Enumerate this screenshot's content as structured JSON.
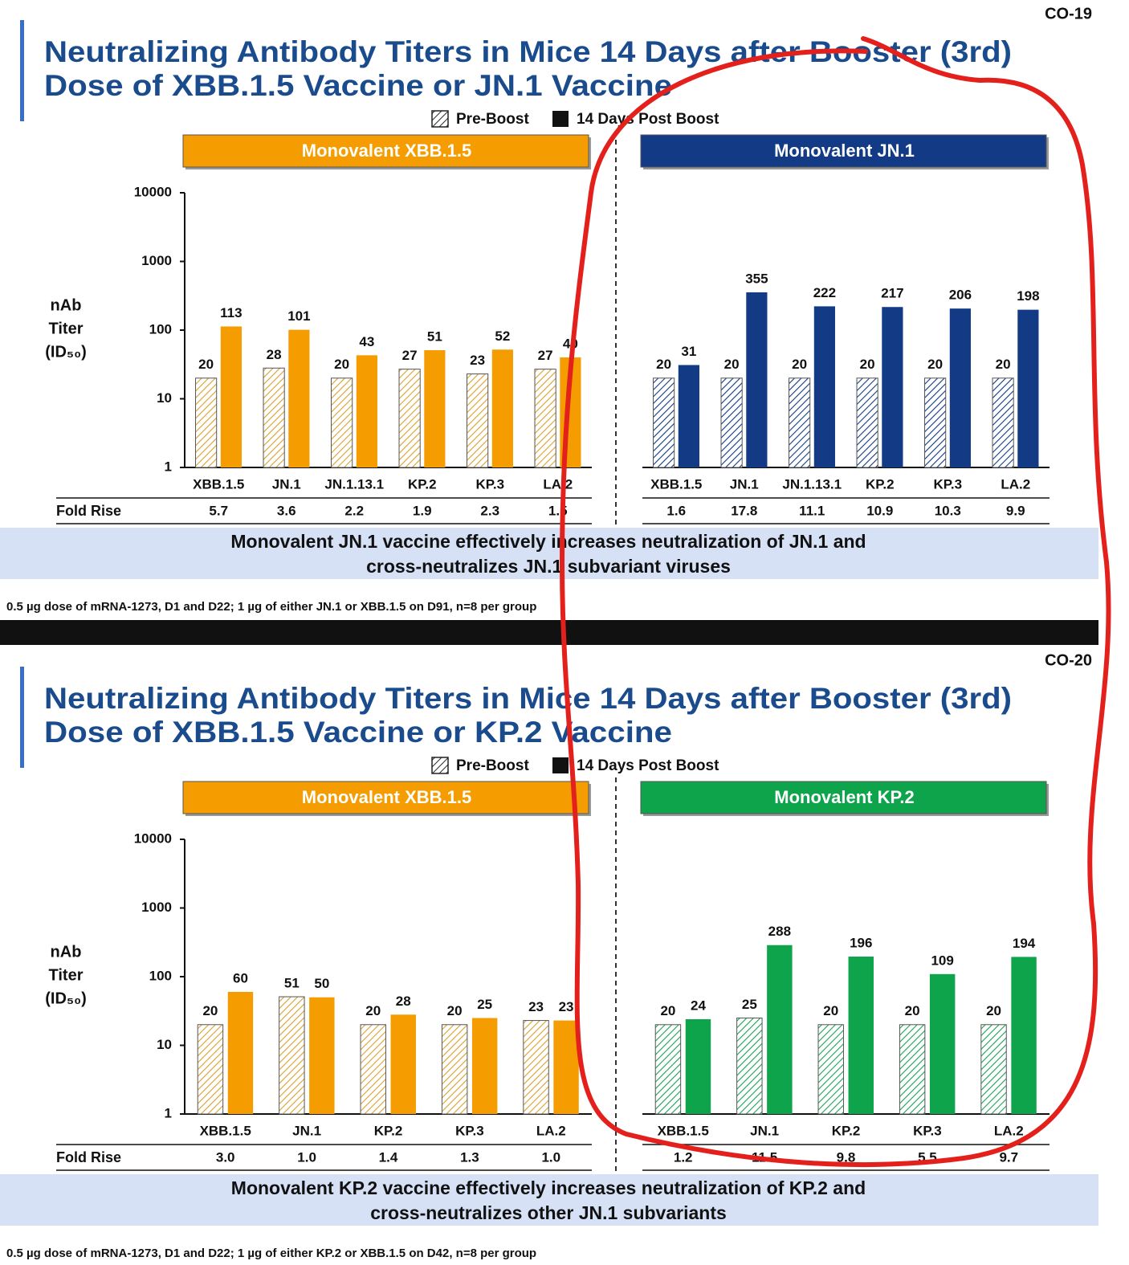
{
  "slides": [
    {
      "code": "CO-19",
      "title": [
        "Neutralizing Antibody Titers in Mice 14 Days after Booster (3rd)",
        "Dose of XBB.1.5 Vaccine or JN.1 Vaccine"
      ],
      "legend": [
        "Pre-Boost",
        "14 Days Post Boost"
      ],
      "conclusion": [
        "Monovalent JN.1 vaccine effectively increases neutralization of JN.1 and",
        "cross-neutralizes JN.1 subvariant viruses"
      ],
      "footnote": "0.5 µg dose of mRNA-1273, D1 and D22; 1 µg of either JN.1 or XBB.1.5 on D91, n=8 per group"
    },
    {
      "code": "CO-20",
      "title": [
        "Neutralizing Antibody Titers in Mice 14 Days after Booster (3rd)",
        "Dose of XBB.1.5 Vaccine or KP.2 Vaccine"
      ],
      "legend": [
        "Pre-Boost",
        "14 Days Post Boost"
      ],
      "conclusion": [
        "Monovalent KP.2 vaccine effectively increases neutralization of KP.2 and",
        "cross-neutralizes other JN.1 subvariants"
      ],
      "footnote": "0.5 µg dose of mRNA-1273, D1 and D22; 1 µg of either KP.2 or XBB.1.5 on D42, n=8 per group"
    }
  ],
  "chart_data": [
    {
      "type": "bar",
      "title": "Monovalent XBB.1.5",
      "header_color": "#f59c00",
      "log_scale": true,
      "ylabel": [
        "nAb",
        "Titer",
        "(ID₅₀)"
      ],
      "categories": [
        "XBB.1.5",
        "JN.1",
        "JN.1.13.1",
        "KP.2",
        "KP.3",
        "LA.2"
      ],
      "series": [
        {
          "color": "#d9a12e",
          "hatch": true,
          "values": [
            20,
            28,
            20,
            27,
            23,
            27
          ]
        },
        {
          "color": "#f59c00",
          "values": [
            113,
            101,
            43,
            51,
            52,
            40
          ]
        }
      ],
      "ylim": [
        1,
        10000
      ],
      "yticks": [
        1,
        10,
        100,
        1000,
        10000
      ],
      "row_label": "Fold Rise",
      "fold_rise": [
        "5.7",
        "3.6",
        "2.2",
        "1.9",
        "2.3",
        "1.5"
      ]
    },
    {
      "type": "bar",
      "title": "Monovalent JN.1",
      "header_color": "#123a85",
      "log_scale": true,
      "categories": [
        "XBB.1.5",
        "JN.1",
        "JN.1.13.1",
        "KP.2",
        "KP.3",
        "LA.2"
      ],
      "series": [
        {
          "color": "#123a85",
          "hatch": true,
          "values": [
            20,
            20,
            20,
            20,
            20,
            20
          ]
        },
        {
          "color": "#123a85",
          "values": [
            31,
            355,
            222,
            217,
            206,
            198
          ]
        }
      ],
      "ylim": [
        1,
        10000
      ],
      "fold_rise": [
        "1.6",
        "17.8",
        "11.1",
        "10.9",
        "10.3",
        "9.9"
      ]
    },
    {
      "type": "bar",
      "title": "Monovalent XBB.1.5",
      "header_color": "#f59c00",
      "log_scale": true,
      "ylabel": [
        "nAb",
        "Titer",
        "(ID₅₀)"
      ],
      "categories": [
        "XBB.1.5",
        "JN.1",
        "KP.2",
        "KP.3",
        "LA.2"
      ],
      "series": [
        {
          "color": "#d9a12e",
          "hatch": true,
          "values": [
            20,
            51,
            20,
            20,
            23
          ]
        },
        {
          "color": "#f59c00",
          "values": [
            60,
            50,
            28,
            25,
            23
          ]
        }
      ],
      "ylim": [
        1,
        10000
      ],
      "yticks": [
        1,
        10,
        100,
        1000,
        10000
      ],
      "row_label": "Fold Rise",
      "fold_rise": [
        "3.0",
        "1.0",
        "1.4",
        "1.3",
        "1.0"
      ]
    },
    {
      "type": "bar",
      "title": "Monovalent KP.2",
      "header_color": "#0ea44b",
      "log_scale": true,
      "categories": [
        "XBB.1.5",
        "JN.1",
        "KP.2",
        "KP.3",
        "LA.2"
      ],
      "series": [
        {
          "color": "#1aa352",
          "hatch": true,
          "values": [
            20,
            25,
            20,
            20,
            20
          ]
        },
        {
          "color": "#0ea44b",
          "values": [
            24,
            288,
            196,
            109,
            194
          ]
        }
      ],
      "ylim": [
        1,
        10000
      ],
      "fold_rise": [
        "1.2",
        "11.5",
        "9.8",
        "5.5",
        "9.7"
      ]
    }
  ]
}
